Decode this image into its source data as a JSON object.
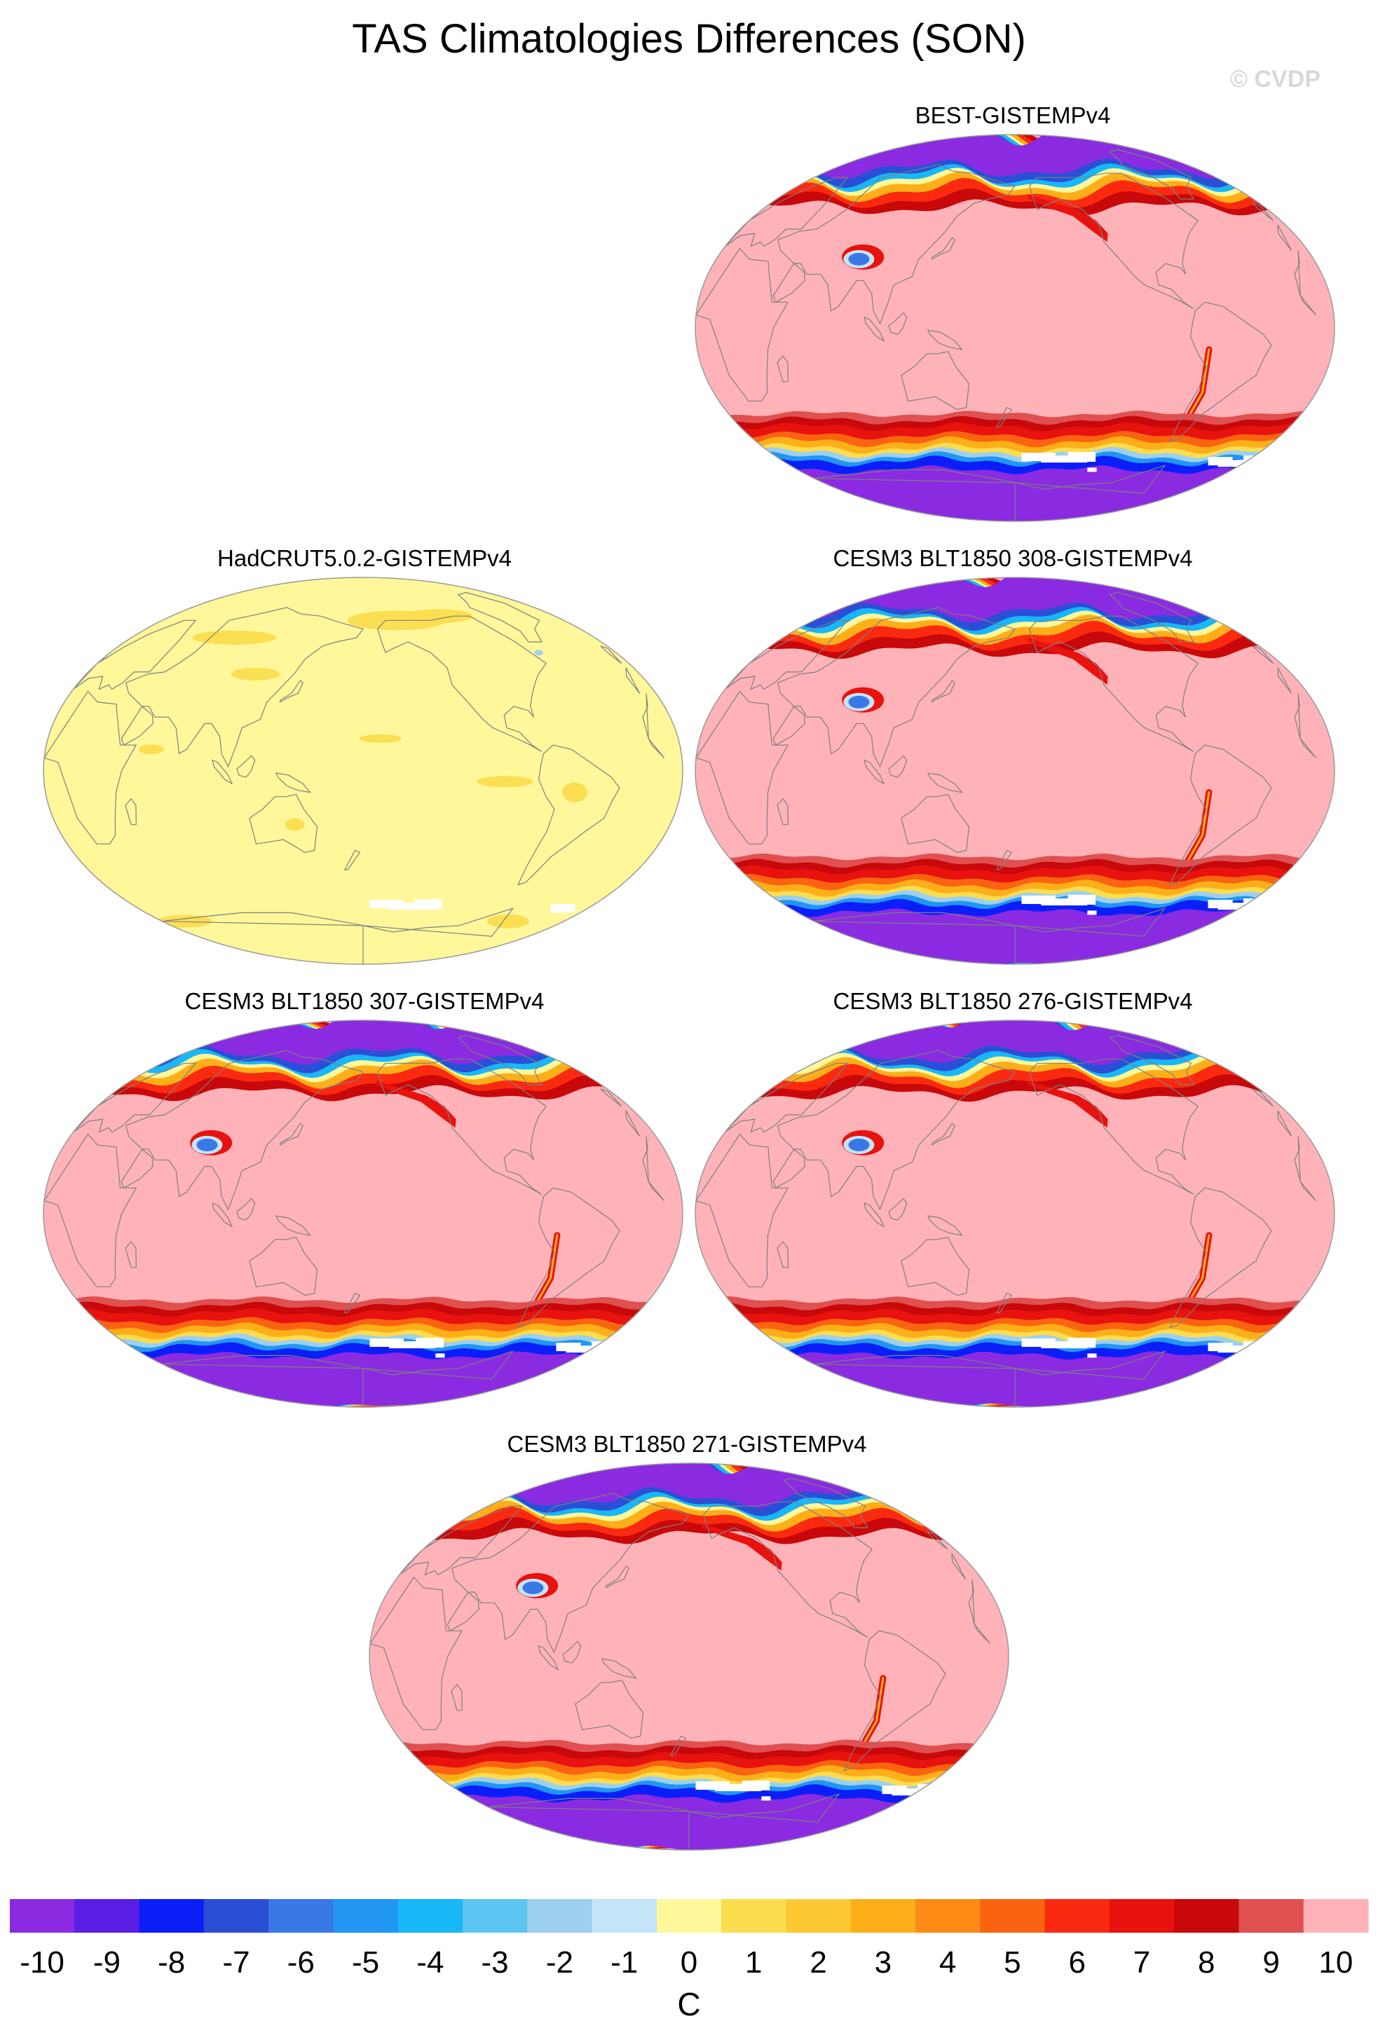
{
  "title": "TAS Climatologies Differences (SON)",
  "watermark": "© CVDP",
  "colors": {
    "levels": [
      "#8a2be2",
      "#5a1fe6",
      "#0c1ef8",
      "#2a4fd6",
      "#3a78e6",
      "#2196f3",
      "#18b7f7",
      "#5cc4f0",
      "#9cd0ee",
      "#c4e4f7",
      "#fff79a",
      "#fbdd4f",
      "#fbc832",
      "#fdaf19",
      "#fd8b16",
      "#fa6411",
      "#fa2a10",
      "#e8120e",
      "#c8080a",
      "#e05050",
      "#ffb3b8"
    ],
    "coast": "#7f7f7f",
    "land_mask": "#ffffff"
  },
  "chart_data": {
    "type": "heatmap",
    "variable": "TAS",
    "season": "SON",
    "units": "C",
    "colorbar": {
      "ticks": [
        "-10",
        "-9",
        "-8",
        "-7",
        "-6",
        "-5",
        "-4",
        "-3",
        "-2",
        "-1",
        "0",
        "1",
        "2",
        "3",
        "4",
        "5",
        "6",
        "7",
        "8",
        "9",
        "10"
      ],
      "units_label": "C"
    },
    "panels": [
      {
        "name": "BEST-GISTEMPv4",
        "pattern": "model"
      },
      {
        "name": "HadCRUT5.0.2-GISTEMPv4",
        "pattern": "obs"
      },
      {
        "name": "CESM3 BLT1850 308-GISTEMPv4",
        "pattern": "model"
      },
      {
        "name": "CESM3 BLT1850 307-GISTEMPv4",
        "pattern": "model"
      },
      {
        "name": "CESM3 BLT1850 276-GISTEMPv4",
        "pattern": "model"
      },
      {
        "name": "CESM3 BLT1850 271-GISTEMPv4",
        "pattern": "model"
      }
    ]
  }
}
